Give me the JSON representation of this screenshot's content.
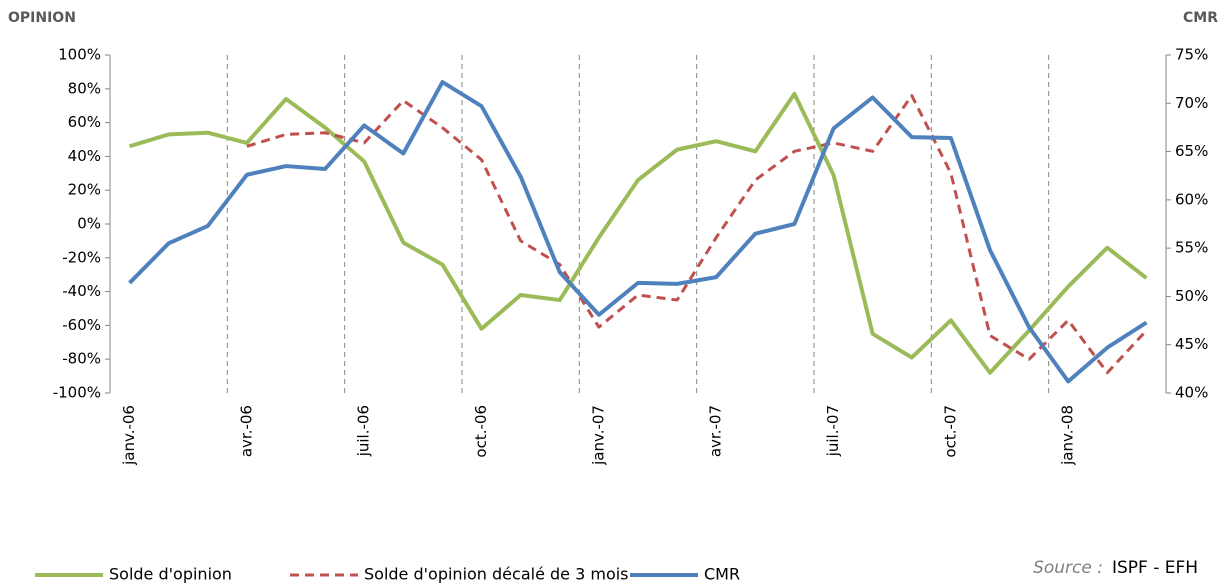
{
  "chart_data": {
    "type": "line",
    "y_label": "OPINION",
    "y2_label": "CMR",
    "categories": [
      "janv.-06",
      null,
      null,
      "avr.-06",
      null,
      null,
      "juil.-06",
      null,
      null,
      "oct.-06",
      null,
      null,
      "janv.-07",
      null,
      null,
      "avr.-07",
      null,
      null,
      "juil.-07",
      null,
      null,
      "oct.-07",
      null,
      null,
      "janv.-08",
      null,
      null
    ],
    "ylim": [
      -100,
      100
    ],
    "yticks": [
      {
        "value": -100,
        "label": "-100%"
      },
      {
        "value": -80,
        "label": "-80%"
      },
      {
        "value": -60,
        "label": "-60%"
      },
      {
        "value": -40,
        "label": "-40%"
      },
      {
        "value": -20,
        "label": "-20%"
      },
      {
        "value": 0,
        "label": "0%"
      },
      {
        "value": 20,
        "label": "20%"
      },
      {
        "value": 40,
        "label": "40%"
      },
      {
        "value": 60,
        "label": "60%"
      },
      {
        "value": 80,
        "label": "80%"
      },
      {
        "value": 100,
        "label": "100%"
      }
    ],
    "y2lim": [
      40,
      75
    ],
    "y2ticks": [
      {
        "value": 40,
        "label": "40%"
      },
      {
        "value": 45,
        "label": "45%"
      },
      {
        "value": 50,
        "label": "50%"
      },
      {
        "value": 55,
        "label": "55%"
      },
      {
        "value": 60,
        "label": "60%"
      },
      {
        "value": 65,
        "label": "65%"
      },
      {
        "value": 70,
        "label": "70%"
      },
      {
        "value": 75,
        "label": "75%"
      }
    ],
    "series": [
      {
        "name": "Solde d'opinion",
        "color": "#9bbb59",
        "dash": false,
        "values": [
          46,
          53,
          54,
          48,
          74,
          57,
          37,
          -11,
          -24,
          -62,
          -42,
          -45,
          -8,
          26,
          44,
          49,
          43,
          77,
          29,
          -65,
          -79,
          -57,
          -88,
          -63,
          -37,
          -14,
          -32
        ]
      },
      {
        "name": "Solde d'opinion décalé de 3 mois",
        "color": "#c0504d",
        "dash": true,
        "values": [
          null,
          null,
          null,
          46,
          53,
          54,
          48,
          73,
          57,
          38,
          -10,
          -24,
          -61,
          -42,
          -45,
          -8,
          26,
          43,
          48,
          43,
          76,
          30,
          -66,
          -80,
          -57,
          -88,
          -63
        ]
      },
      {
        "name": "CMR",
        "color": "#4f81bd",
        "dash": false,
        "axis": "y2",
        "values": [
          51.4,
          55.5,
          57.3,
          62.6,
          63.5,
          63.2,
          67.7,
          64.8,
          72.2,
          69.7,
          62.4,
          52.5,
          48.1,
          51.4,
          51.3,
          52,
          56.5,
          57.5,
          67.4,
          70.6,
          66.5,
          66.4,
          54.8,
          46.8,
          41.2,
          44.7,
          47.3
        ]
      }
    ],
    "source_label": "Source :",
    "source": "ISPF - EFH"
  }
}
